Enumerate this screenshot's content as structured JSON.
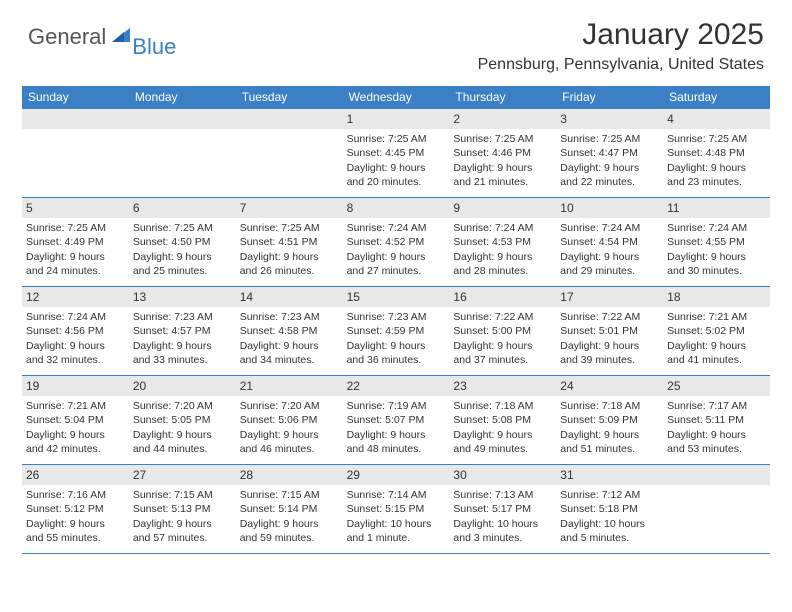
{
  "logo": {
    "text1": "General",
    "text2": "Blue",
    "color_general": "#555555",
    "color_blue": "#3b7fc4"
  },
  "title": "January 2025",
  "location": "Pennsburg, Pennsylvania, United States",
  "colors": {
    "header_bg": "#3b7fc4",
    "header_text": "#ffffff",
    "daynum_bg": "#e8e8e8",
    "text": "#333333",
    "divider": "#3b7fc4",
    "background": "#ffffff"
  },
  "fonts": {
    "title_size": 30,
    "location_size": 16,
    "dayname_size": 12,
    "daynum_size": 12,
    "body_size": 10.5
  },
  "day_names": [
    "Sunday",
    "Monday",
    "Tuesday",
    "Wednesday",
    "Thursday",
    "Friday",
    "Saturday"
  ],
  "layout": {
    "first_weekday_index": 3,
    "days_in_month": 31,
    "columns": 7,
    "rows": 5
  },
  "days": [
    {
      "n": 1,
      "sunrise": "7:25 AM",
      "sunset": "4:45 PM",
      "daylight": "9 hours and 20 minutes."
    },
    {
      "n": 2,
      "sunrise": "7:25 AM",
      "sunset": "4:46 PM",
      "daylight": "9 hours and 21 minutes."
    },
    {
      "n": 3,
      "sunrise": "7:25 AM",
      "sunset": "4:47 PM",
      "daylight": "9 hours and 22 minutes."
    },
    {
      "n": 4,
      "sunrise": "7:25 AM",
      "sunset": "4:48 PM",
      "daylight": "9 hours and 23 minutes."
    },
    {
      "n": 5,
      "sunrise": "7:25 AM",
      "sunset": "4:49 PM",
      "daylight": "9 hours and 24 minutes."
    },
    {
      "n": 6,
      "sunrise": "7:25 AM",
      "sunset": "4:50 PM",
      "daylight": "9 hours and 25 minutes."
    },
    {
      "n": 7,
      "sunrise": "7:25 AM",
      "sunset": "4:51 PM",
      "daylight": "9 hours and 26 minutes."
    },
    {
      "n": 8,
      "sunrise": "7:24 AM",
      "sunset": "4:52 PM",
      "daylight": "9 hours and 27 minutes."
    },
    {
      "n": 9,
      "sunrise": "7:24 AM",
      "sunset": "4:53 PM",
      "daylight": "9 hours and 28 minutes."
    },
    {
      "n": 10,
      "sunrise": "7:24 AM",
      "sunset": "4:54 PM",
      "daylight": "9 hours and 29 minutes."
    },
    {
      "n": 11,
      "sunrise": "7:24 AM",
      "sunset": "4:55 PM",
      "daylight": "9 hours and 30 minutes."
    },
    {
      "n": 12,
      "sunrise": "7:24 AM",
      "sunset": "4:56 PM",
      "daylight": "9 hours and 32 minutes."
    },
    {
      "n": 13,
      "sunrise": "7:23 AM",
      "sunset": "4:57 PM",
      "daylight": "9 hours and 33 minutes."
    },
    {
      "n": 14,
      "sunrise": "7:23 AM",
      "sunset": "4:58 PM",
      "daylight": "9 hours and 34 minutes."
    },
    {
      "n": 15,
      "sunrise": "7:23 AM",
      "sunset": "4:59 PM",
      "daylight": "9 hours and 36 minutes."
    },
    {
      "n": 16,
      "sunrise": "7:22 AM",
      "sunset": "5:00 PM",
      "daylight": "9 hours and 37 minutes."
    },
    {
      "n": 17,
      "sunrise": "7:22 AM",
      "sunset": "5:01 PM",
      "daylight": "9 hours and 39 minutes."
    },
    {
      "n": 18,
      "sunrise": "7:21 AM",
      "sunset": "5:02 PM",
      "daylight": "9 hours and 41 minutes."
    },
    {
      "n": 19,
      "sunrise": "7:21 AM",
      "sunset": "5:04 PM",
      "daylight": "9 hours and 42 minutes."
    },
    {
      "n": 20,
      "sunrise": "7:20 AM",
      "sunset": "5:05 PM",
      "daylight": "9 hours and 44 minutes."
    },
    {
      "n": 21,
      "sunrise": "7:20 AM",
      "sunset": "5:06 PM",
      "daylight": "9 hours and 46 minutes."
    },
    {
      "n": 22,
      "sunrise": "7:19 AM",
      "sunset": "5:07 PM",
      "daylight": "9 hours and 48 minutes."
    },
    {
      "n": 23,
      "sunrise": "7:18 AM",
      "sunset": "5:08 PM",
      "daylight": "9 hours and 49 minutes."
    },
    {
      "n": 24,
      "sunrise": "7:18 AM",
      "sunset": "5:09 PM",
      "daylight": "9 hours and 51 minutes."
    },
    {
      "n": 25,
      "sunrise": "7:17 AM",
      "sunset": "5:11 PM",
      "daylight": "9 hours and 53 minutes."
    },
    {
      "n": 26,
      "sunrise": "7:16 AM",
      "sunset": "5:12 PM",
      "daylight": "9 hours and 55 minutes."
    },
    {
      "n": 27,
      "sunrise": "7:15 AM",
      "sunset": "5:13 PM",
      "daylight": "9 hours and 57 minutes."
    },
    {
      "n": 28,
      "sunrise": "7:15 AM",
      "sunset": "5:14 PM",
      "daylight": "9 hours and 59 minutes."
    },
    {
      "n": 29,
      "sunrise": "7:14 AM",
      "sunset": "5:15 PM",
      "daylight": "10 hours and 1 minute."
    },
    {
      "n": 30,
      "sunrise": "7:13 AM",
      "sunset": "5:17 PM",
      "daylight": "10 hours and 3 minutes."
    },
    {
      "n": 31,
      "sunrise": "7:12 AM",
      "sunset": "5:18 PM",
      "daylight": "10 hours and 5 minutes."
    }
  ],
  "labels": {
    "sunrise": "Sunrise:",
    "sunset": "Sunset:",
    "daylight": "Daylight:"
  }
}
